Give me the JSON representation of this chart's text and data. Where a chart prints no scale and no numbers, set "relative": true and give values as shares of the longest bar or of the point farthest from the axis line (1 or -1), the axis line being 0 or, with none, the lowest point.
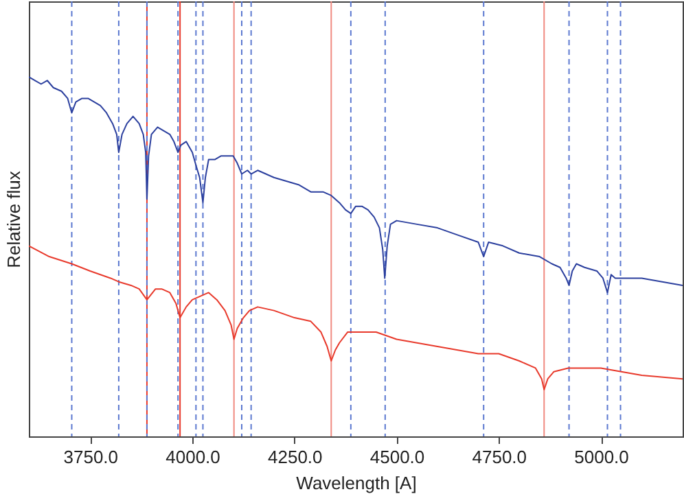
{
  "chart_data": {
    "type": "line",
    "xlabel": "Wavelength [A]",
    "ylabel": "Relative flux",
    "relative": true,
    "xlim": [
      3600,
      5200
    ],
    "xticks": [
      {
        "value": 3750,
        "label": "3750.0"
      },
      {
        "value": 4000,
        "label": "4000.0"
      },
      {
        "value": 4250,
        "label": "4250.0"
      },
      {
        "value": 4500,
        "label": "4500.0"
      },
      {
        "value": 4750,
        "label": "4750.0"
      },
      {
        "value": 5000,
        "label": "5000.0"
      }
    ],
    "series": [
      {
        "color": "#2b3f9e",
        "x": [
          3600,
          3615,
          3630,
          3645,
          3660,
          3680,
          3695,
          3705,
          3715,
          3730,
          3745,
          3760,
          3775,
          3790,
          3805,
          3815,
          3820,
          3828,
          3840,
          3855,
          3870,
          3880,
          3886,
          3889,
          3893,
          3900,
          3915,
          3930,
          3945,
          3955,
          3965,
          3972,
          3985,
          4000,
          4010,
          4018,
          4026,
          4032,
          4040,
          4055,
          4070,
          4085,
          4100,
          4110,
          4121,
          4135,
          4144,
          4160,
          4180,
          4200,
          4230,
          4260,
          4290,
          4320,
          4340,
          4360,
          4375,
          4388,
          4400,
          4415,
          4430,
          4445,
          4458,
          4466,
          4471,
          4477,
          4485,
          4500,
          4550,
          4600,
          4650,
          4700,
          4713,
          4725,
          4760,
          4800,
          4850,
          4880,
          4900,
          4915,
          4922,
          4930,
          4940,
          4960,
          4990,
          5005,
          5016,
          5025,
          5035,
          5048,
          5100,
          5150,
          5200
        ],
        "values": [
          1.0,
          0.99,
          0.98,
          0.99,
          0.97,
          0.96,
          0.94,
          0.9,
          0.93,
          0.94,
          0.94,
          0.93,
          0.92,
          0.9,
          0.87,
          0.84,
          0.79,
          0.84,
          0.87,
          0.89,
          0.87,
          0.84,
          0.79,
          0.66,
          0.78,
          0.84,
          0.86,
          0.85,
          0.84,
          0.82,
          0.79,
          0.81,
          0.82,
          0.79,
          0.75,
          0.72,
          0.65,
          0.72,
          0.77,
          0.77,
          0.78,
          0.78,
          0.78,
          0.76,
          0.73,
          0.74,
          0.73,
          0.74,
          0.73,
          0.72,
          0.71,
          0.7,
          0.68,
          0.68,
          0.67,
          0.65,
          0.63,
          0.62,
          0.64,
          0.64,
          0.63,
          0.61,
          0.58,
          0.52,
          0.44,
          0.53,
          0.59,
          0.6,
          0.59,
          0.58,
          0.56,
          0.54,
          0.5,
          0.54,
          0.53,
          0.51,
          0.5,
          0.48,
          0.47,
          0.44,
          0.42,
          0.46,
          0.48,
          0.47,
          0.46,
          0.44,
          0.4,
          0.45,
          0.44,
          0.44,
          0.44,
          0.43,
          0.42
        ]
      },
      {
        "color": "#e8392b",
        "x": [
          3600,
          3650,
          3705,
          3750,
          3800,
          3820,
          3850,
          3870,
          3889,
          3910,
          3925,
          3945,
          3960,
          3970,
          3985,
          4000,
          4020,
          4040,
          4060,
          4080,
          4095,
          4102,
          4110,
          4125,
          4140,
          4160,
          4200,
          4250,
          4290,
          4315,
          4330,
          4340,
          4350,
          4360,
          4380,
          4405,
          4450,
          4500,
          4600,
          4700,
          4750,
          4800,
          4840,
          4855,
          4861,
          4870,
          4885,
          4920,
          4960,
          5000,
          5100,
          5200
        ],
        "values": [
          0.53,
          0.5,
          0.48,
          0.46,
          0.44,
          0.43,
          0.42,
          0.41,
          0.38,
          0.41,
          0.41,
          0.4,
          0.37,
          0.33,
          0.36,
          0.38,
          0.39,
          0.4,
          0.38,
          0.35,
          0.31,
          0.27,
          0.3,
          0.33,
          0.35,
          0.36,
          0.35,
          0.33,
          0.32,
          0.29,
          0.25,
          0.21,
          0.24,
          0.26,
          0.29,
          0.29,
          0.29,
          0.27,
          0.25,
          0.23,
          0.23,
          0.21,
          0.19,
          0.16,
          0.13,
          0.16,
          0.18,
          0.19,
          0.19,
          0.19,
          0.17,
          0.16
        ]
      }
    ],
    "ref_lines": [
      {
        "axis": "x",
        "value": 3889,
        "color": "#e8392b",
        "line_style": "solid"
      },
      {
        "axis": "x",
        "value": 3970,
        "color": "#e8392b",
        "line_style": "solid"
      },
      {
        "axis": "x",
        "value": 4102,
        "color": "#f08a80",
        "line_style": "solid"
      },
      {
        "axis": "x",
        "value": 4340,
        "color": "#f08a80",
        "line_style": "solid"
      },
      {
        "axis": "x",
        "value": 4861,
        "color": "#f08a80",
        "line_style": "solid"
      },
      {
        "axis": "x",
        "value": 3705,
        "color": "#5b78d0",
        "line_style": "dashed"
      },
      {
        "axis": "x",
        "value": 3820,
        "color": "#5b78d0",
        "line_style": "dashed"
      },
      {
        "axis": "x",
        "value": 3889,
        "color": "#5b78d0",
        "line_style": "dashed"
      },
      {
        "axis": "x",
        "value": 3965,
        "color": "#5b78d0",
        "line_style": "dashed"
      },
      {
        "axis": "x",
        "value": 4009,
        "color": "#5b78d0",
        "line_style": "dashed"
      },
      {
        "axis": "x",
        "value": 4026,
        "color": "#5b78d0",
        "line_style": "dashed"
      },
      {
        "axis": "x",
        "value": 4121,
        "color": "#5b78d0",
        "line_style": "dashed"
      },
      {
        "axis": "x",
        "value": 4144,
        "color": "#5b78d0",
        "line_style": "dashed"
      },
      {
        "axis": "x",
        "value": 4388,
        "color": "#5b78d0",
        "line_style": "dashed"
      },
      {
        "axis": "x",
        "value": 4472,
        "color": "#5b78d0",
        "line_style": "dashed"
      },
      {
        "axis": "x",
        "value": 4713,
        "color": "#5b78d0",
        "line_style": "dashed"
      },
      {
        "axis": "x",
        "value": 4922,
        "color": "#5b78d0",
        "line_style": "dashed"
      },
      {
        "axis": "x",
        "value": 5016,
        "color": "#5b78d0",
        "line_style": "dashed"
      },
      {
        "axis": "x",
        "value": 5048,
        "color": "#5b78d0",
        "line_style": "dashed"
      }
    ]
  }
}
